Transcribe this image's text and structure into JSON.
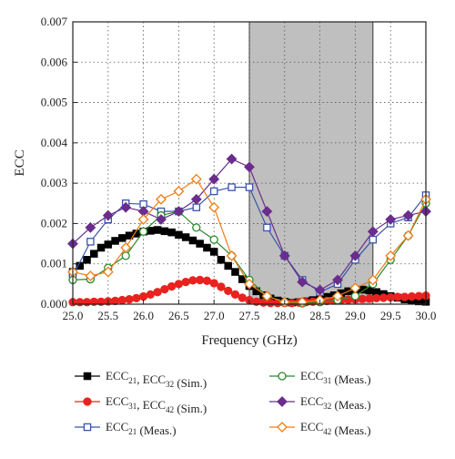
{
  "chart_data": {
    "type": "line",
    "xlabel": "Frequency (GHz)",
    "ylabel": "ECC",
    "xlim": [
      25.0,
      30.0
    ],
    "ylim": [
      0.0,
      0.007
    ],
    "x_ticks": [
      "25.0",
      "25.5",
      "26.0",
      "26.5",
      "27.0",
      "27.5",
      "28.0",
      "28.5",
      "29.0",
      "29.5",
      "30.0"
    ],
    "y_ticks": [
      "0.000",
      "0.001",
      "0.002",
      "0.003",
      "0.004",
      "0.005",
      "0.006",
      "0.007"
    ],
    "grid": "dotted",
    "shaded_band": {
      "x_start": 27.5,
      "x_end": 29.25,
      "color": "#bfbfbf"
    },
    "legend_position": "bottom",
    "series": [
      {
        "name": "ECC",
        "sub": "21",
        "name2": "ECC",
        "sub2": "32",
        "suffix": " (Sim.)",
        "color": "#000000",
        "marker": "square-filled",
        "x": [
          25.0,
          25.1,
          25.2,
          25.3,
          25.4,
          25.5,
          25.6,
          25.7,
          25.8,
          25.9,
          26.0,
          26.1,
          26.2,
          26.3,
          26.4,
          26.5,
          26.6,
          26.7,
          26.8,
          26.9,
          27.0,
          27.1,
          27.2,
          27.3,
          27.4,
          27.5,
          27.6,
          27.7,
          27.8,
          27.9,
          28.0,
          28.1,
          28.2,
          28.3,
          28.4,
          28.5,
          28.6,
          28.7,
          28.8,
          28.9,
          29.0,
          29.1,
          29.2,
          29.3,
          29.4,
          29.5,
          29.6,
          29.7,
          29.8,
          29.9,
          30.0
        ],
        "y": [
          0.0008,
          0.00095,
          0.0011,
          0.00125,
          0.0014,
          0.00148,
          0.00157,
          0.00164,
          0.0017,
          0.00175,
          0.0018,
          0.00182,
          0.00184,
          0.00181,
          0.00178,
          0.00172,
          0.00166,
          0.00158,
          0.0015,
          0.0014,
          0.0013,
          0.0011,
          0.00095,
          0.0008,
          0.00062,
          0.00045,
          0.00032,
          0.00022,
          0.00014,
          9e-05,
          6e-05,
          4e-05,
          5e-05,
          7e-05,
          0.0001,
          0.00014,
          0.00018,
          0.00022,
          0.00027,
          0.00032,
          0.00035,
          0.00036,
          0.00034,
          0.0003,
          0.00025,
          0.0002,
          0.00016,
          0.00012,
          9e-05,
          7e-05,
          6e-05
        ]
      },
      {
        "name": "ECC",
        "sub": "31",
        "name2": "ECC",
        "sub2": "42",
        "suffix": " (Sim.)",
        "color": "#e8231f",
        "marker": "circle-filled",
        "x": [
          25.0,
          25.1,
          25.2,
          25.3,
          25.4,
          25.5,
          25.6,
          25.7,
          25.8,
          25.9,
          26.0,
          26.1,
          26.2,
          26.3,
          26.4,
          26.5,
          26.6,
          26.7,
          26.8,
          26.9,
          27.0,
          27.1,
          27.2,
          27.3,
          27.4,
          27.5,
          27.6,
          27.7,
          27.8,
          27.9,
          28.0,
          28.1,
          28.2,
          28.3,
          28.4,
          28.5,
          28.6,
          28.7,
          28.8,
          28.9,
          29.0,
          29.1,
          29.2,
          29.3,
          29.4,
          29.5,
          29.6,
          29.7,
          29.8,
          29.9,
          30.0
        ],
        "y": [
          5e-05,
          5e-05,
          5e-05,
          6e-05,
          6e-05,
          7e-05,
          8e-05,
          0.0001,
          0.00012,
          0.00015,
          0.00019,
          0.00024,
          0.0003,
          0.00037,
          0.00044,
          0.0005,
          0.00055,
          0.00059,
          0.0006,
          0.00058,
          0.00052,
          0.00043,
          0.00033,
          0.00024,
          0.00016,
          0.0001,
          6e-05,
          4e-05,
          3e-05,
          3e-05,
          3e-05,
          3e-05,
          4e-05,
          5e-05,
          6e-05,
          7e-05,
          8e-05,
          9e-05,
          0.0001,
          0.00011,
          0.00012,
          0.00013,
          0.00014,
          0.00015,
          0.00016,
          0.00017,
          0.00018,
          0.00018,
          0.00019,
          0.0002,
          0.00021
        ]
      },
      {
        "name": "ECC",
        "sub": "21",
        "suffix": " (Meas.)",
        "color": "#3a55a8",
        "marker": "square-open",
        "x": [
          25.0,
          25.25,
          25.5,
          25.75,
          26.0,
          26.25,
          26.5,
          26.75,
          27.0,
          27.25,
          27.5,
          27.75,
          28.0,
          28.25,
          28.5,
          28.75,
          29.0,
          29.25,
          29.5,
          29.75,
          30.0
        ],
        "y": [
          0.0007,
          0.00155,
          0.0021,
          0.0025,
          0.00248,
          0.0023,
          0.0023,
          0.0024,
          0.0028,
          0.0029,
          0.0029,
          0.0019,
          0.0012,
          0.0006,
          0.0003,
          0.0005,
          0.0011,
          0.0016,
          0.002,
          0.00215,
          0.0027
        ]
      },
      {
        "name": "ECC",
        "sub": "31",
        "suffix": " (Meas.)",
        "color": "#2a8a2a",
        "marker": "circle-open",
        "x": [
          25.0,
          25.25,
          25.5,
          25.75,
          26.0,
          26.25,
          26.5,
          26.75,
          27.0,
          27.25,
          27.5,
          27.75,
          28.0,
          28.25,
          28.5,
          28.75,
          29.0,
          29.25,
          29.5,
          29.75,
          30.0
        ],
        "y": [
          0.0006,
          0.00062,
          0.0009,
          0.0012,
          0.0018,
          0.0022,
          0.0023,
          0.0019,
          0.0016,
          0.0012,
          0.0006,
          0.0002,
          5e-05,
          2e-05,
          5e-05,
          0.0001,
          0.0002,
          0.0005,
          0.0011,
          0.0017,
          0.0025
        ]
      },
      {
        "name": "ECC",
        "sub": "32",
        "suffix": " (Meas.)",
        "color": "#6a2d8c",
        "marker": "diamond-filled",
        "x": [
          25.0,
          25.25,
          25.5,
          25.75,
          26.0,
          26.25,
          26.5,
          26.75,
          27.0,
          27.25,
          27.5,
          27.75,
          28.0,
          28.25,
          28.5,
          28.75,
          29.0,
          29.25,
          29.5,
          29.75,
          30.0
        ],
        "y": [
          0.0015,
          0.0019,
          0.0022,
          0.0024,
          0.0023,
          0.0021,
          0.0023,
          0.0026,
          0.0031,
          0.0036,
          0.0034,
          0.0023,
          0.0012,
          0.00055,
          0.00035,
          0.0006,
          0.0012,
          0.0018,
          0.0021,
          0.0022,
          0.0023
        ]
      },
      {
        "name": "ECC",
        "sub": "42",
        "suffix": " (Meas.)",
        "color": "#f07c14",
        "marker": "diamond-open",
        "x": [
          25.0,
          25.25,
          25.5,
          25.75,
          26.0,
          26.25,
          26.5,
          26.75,
          27.0,
          27.25,
          27.5,
          27.75,
          28.0,
          28.25,
          28.5,
          28.75,
          29.0,
          29.25,
          29.5,
          29.75,
          30.0
        ],
        "y": [
          0.0008,
          0.0007,
          0.0008,
          0.0014,
          0.0021,
          0.0026,
          0.0028,
          0.0031,
          0.0024,
          0.0012,
          0.0005,
          0.0002,
          5e-05,
          5e-05,
          0.0001,
          0.0002,
          0.0004,
          0.0006,
          0.0012,
          0.0017,
          0.0026
        ]
      }
    ]
  }
}
